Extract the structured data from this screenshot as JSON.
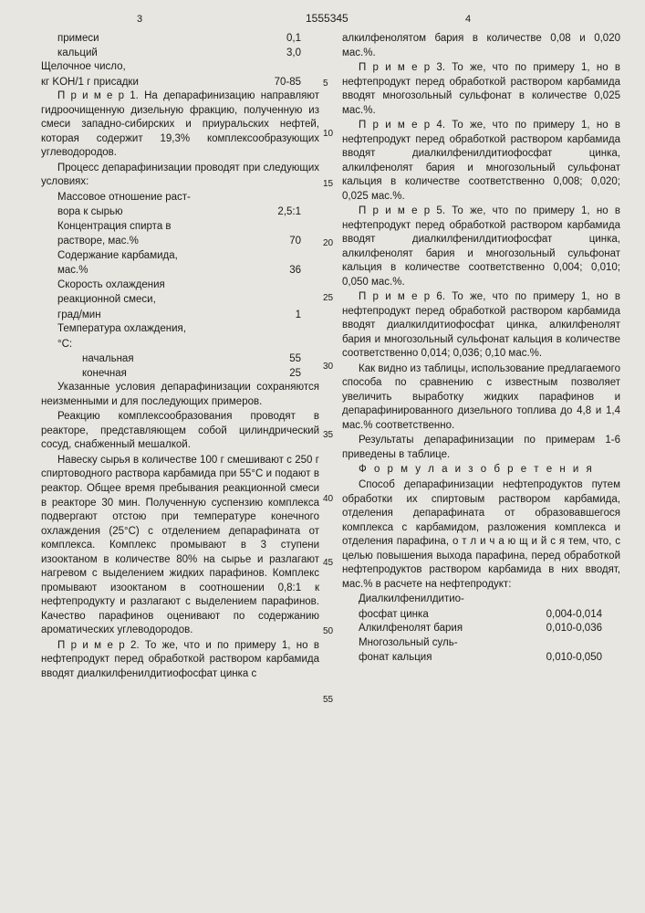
{
  "doc_number": "1555345",
  "page_left": "3",
  "page_right": "4",
  "left_col": {
    "rows1": [
      {
        "label": "примеси",
        "val": "0,1"
      },
      {
        "label": "кальций",
        "val": "3,0"
      }
    ],
    "line1": "Щелочное число,",
    "row2": {
      "label": "кг KOH/1 г присадки",
      "val": "70-85"
    },
    "p1": "П р и м е р 1. На депарафинизацию направляют гидроочищенную дизельную фракцию, полученную из смеси западно-сибирских и приуральских нефтей, которая содержит 19,3% комплексообразующих углеводородов.",
    "p2": "Процесс депарафинизации проводят при следующих условиях:",
    "cond": [
      {
        "l1": "Массовое отношение раст-",
        "l2": "вора к сырью",
        "val": "2,5:1"
      },
      {
        "l1": "Концентрация спирта в",
        "l2": "растворе, мас.%",
        "val": "70"
      },
      {
        "l1": "Содержание карбамида,",
        "l2": "мас.%",
        "val": "36"
      },
      {
        "l1": "Скорость охлаждения",
        "l2": "реакционной смеси,",
        "l3": "град/мин",
        "val": "1"
      },
      {
        "l1": "Температура охлаждения,",
        "l2": "°C:",
        "val": ""
      }
    ],
    "temp": [
      {
        "label": "начальная",
        "val": "55"
      },
      {
        "label": "конечная",
        "val": "25"
      }
    ],
    "p3": "Указанные условия депарафинизации сохраняются неизменными и для последующих примеров.",
    "p4": "Реакцию комплексообразования проводят в реакторе, представляющем собой цилиндрический сосуд, снабженный мешалкой.",
    "p5": "Навеску сырья в количестве 100 г смешивают с 250 г спиртоводного раствора карбамида при 55°С и подают в реактор. Общее время пребывания реакционной смеси в реакторе 30 мин. Полученную суспензию комплекса подвергают отстою при температуре конечного охлаждения (25°С) с отделением депарафината от комплекса. Комплекс промывают в 3 ступени изооктаном в количестве 80% на сырье и разлагают нагревом с выделением жидких парафинов. Комплекс промывают изооктаном в соотношении 0,8:1 к нефтепродукту и разлагают с выделением парафинов. Качество парафинов оценивают по содержанию ароматических углеводородов.",
    "p6": "П р и м е р 2. То же, что и по примеру 1, но в нефтепродукт перед обработкой раствором карбамида вводят диалкилфенилдитиофосфат цинка с"
  },
  "right_col": {
    "p1": "алкилфенолятом бария в количестве 0,08 и 0,020 мас.%.",
    "p2": "П р и м е р 3. То же, что по примеру 1, но в нефтепродукт перед обработкой раствором карбамида вводят многозольный сульфонат в количестве 0,025 мас.%.",
    "p3": "П р и м е р 4. То же, что по примеру 1, но в нефтепродукт перед обработкой раствором карбамида вводят диалкилфенилдитиофосфат цинка, алкилфенолят бария и многозольный сульфонат кальция в количестве соответственно 0,008; 0,020; 0,025 мас.%.",
    "p4": "П р и м е р 5. То же, что по примеру 1, но в нефтепродукт перед обработкой раствором карбамида вводят диалкилфенилдитиофосфат цинка, алкилфенолят бария и многозольный сульфонат кальция в количестве соответственно 0,004; 0,010; 0,050 мас.%.",
    "p5": "П р и м е р 6. То же, что по примеру 1, но в нефтепродукт перед обработкой раствором карбамида вводят диалкилдитиофосфат цинка, алкилфенолят бария и многозольный сульфонат кальция в количестве соответственно 0,014; 0,036; 0,10 мас.%.",
    "p6": "Как видно из таблицы, использование предлагаемого способа по сравнению с известным позволяет увеличить выработку жидких парафинов и депарафинированного дизельного топлива до 4,8 и 1,4 мас.% соответственно.",
    "p7": "Результаты депарафинизации по примерам 1-6 приведены в таблице.",
    "formula_title": "Ф о р м у л а  и з о б р е т е н и я",
    "p8": "Способ депарафинизации нефтепродуктов путем обработки их спиртовым раствором карбамида, отделения депарафината от образовавшегося комплекса с карбамидом, разложения комплекса и отделения парафина, о т л и ч а ю щ и й с я  тем, что, с целью повышения выхода парафина, перед обработкой нефтепродуктов раствором карбамида в них вводят, мас.% в расчете на нефтепродукт:",
    "claims": [
      {
        "l1": "Диалкилфенилдитио-",
        "l2": "фосфат цинка",
        "val": "0,004-0,014"
      },
      {
        "l1": "Алкилфенолят бария",
        "l2": "",
        "val": "0,010-0,036"
      },
      {
        "l1": "Многозольный суль-",
        "l2": "фонат кальция",
        "val": "0,010-0,050"
      }
    ]
  },
  "side_nums": [
    "5",
    "10",
    "15",
    "20",
    "25",
    "30",
    "35",
    "40",
    "45",
    "50",
    "55"
  ],
  "side_positions": [
    85,
    140,
    195,
    260,
    320,
    395,
    470,
    540,
    610,
    685,
    760,
    825
  ]
}
